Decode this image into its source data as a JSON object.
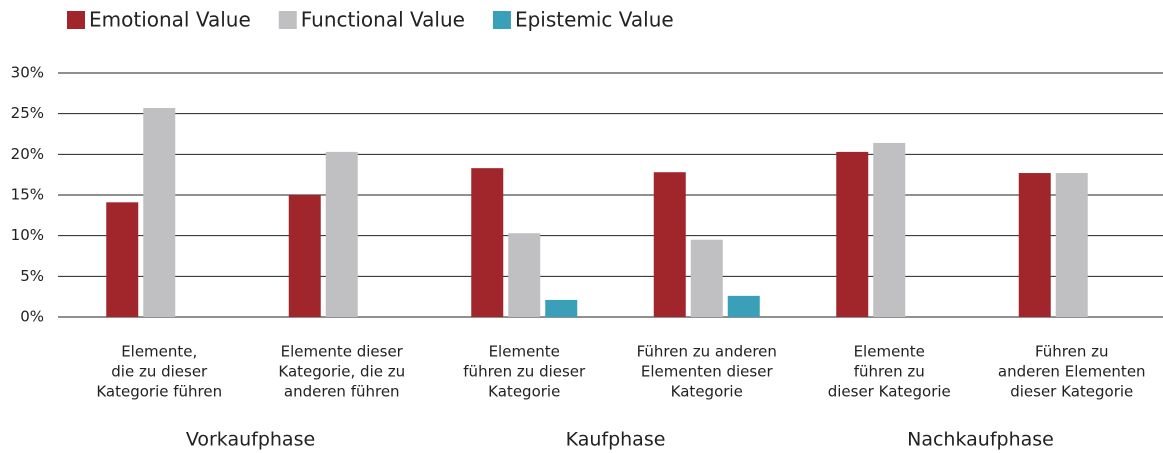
{
  "chart_data": {
    "type": "bar",
    "categories": [
      [
        "Elemente,",
        "die zu dieser",
        "Kategorie führen"
      ],
      [
        "Elemente dieser",
        "Kategorie,  die zu",
        "anderen führen"
      ],
      [
        "Elemente",
        "führen zu dieser",
        "Kategorie"
      ],
      [
        "Führen zu anderen",
        "Elementen dieser",
        "Kategorie"
      ],
      [
        "Elemente",
        "führen zu",
        "dieser Kategorie"
      ],
      [
        "Führen zu",
        "anderen Elementen",
        "dieser Kategorie"
      ]
    ],
    "groups": [
      "Vorkaufphase",
      "Kaufphase",
      "Nachkaufphase"
    ],
    "series": [
      {
        "name": "Emotional Value",
        "color": "#a1262c",
        "values": [
          14.1,
          15.0,
          18.3,
          17.8,
          20.3,
          17.7
        ]
      },
      {
        "name": "Functional Value",
        "color": "#c0c0c2",
        "values": [
          25.7,
          20.3,
          10.3,
          9.5,
          21.4,
          17.7
        ]
      },
      {
        "name": "Epistemic Value",
        "color": "#3a9fb8",
        "values": [
          0,
          0,
          2.1,
          2.6,
          0,
          0
        ]
      }
    ],
    "ylim": [
      0,
      30
    ],
    "yticks": [
      {
        "value": 0,
        "label": "0%"
      },
      {
        "value": 5,
        "label": "5%"
      },
      {
        "value": 10,
        "label": "10%"
      },
      {
        "value": 15,
        "label": "15%"
      },
      {
        "value": 20,
        "label": "20%"
      },
      {
        "value": 25,
        "label": "25%"
      },
      {
        "value": 30,
        "label": "30%"
      }
    ],
    "grid": true,
    "legend": "top"
  }
}
